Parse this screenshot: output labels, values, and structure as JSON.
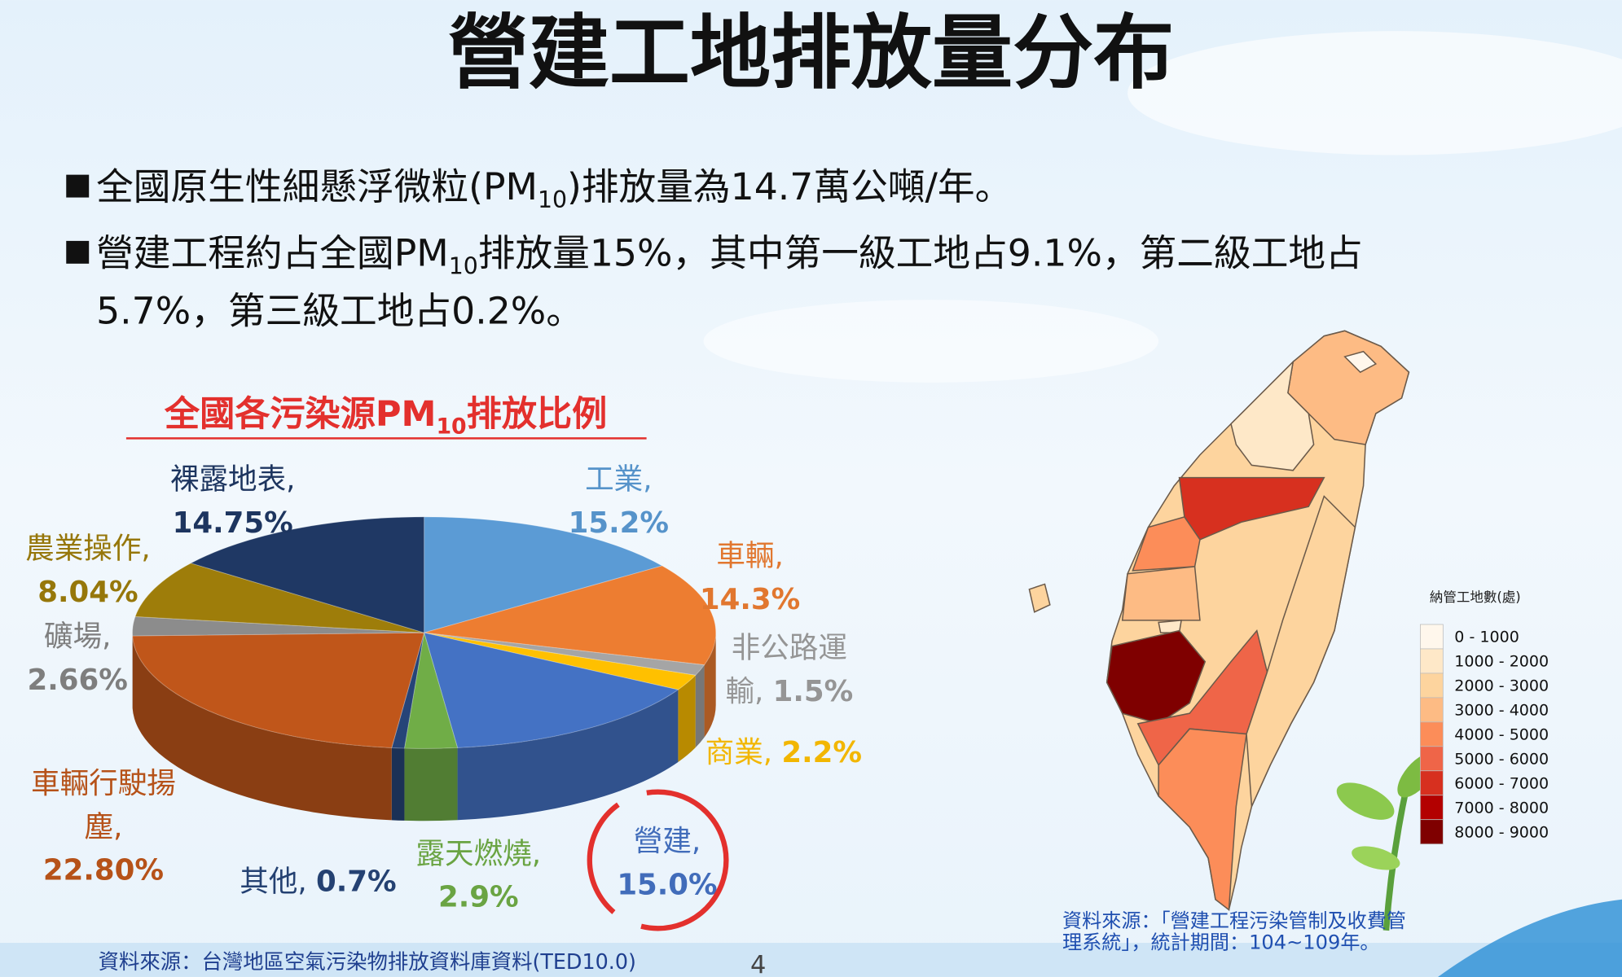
{
  "title": "營建工地排放量分布",
  "bullets": [
    {
      "lines": [
        [
          "全國原生性細懸浮微粒(PM",
          "10",
          ")排放量為14.7萬公噸/年。"
        ]
      ]
    },
    {
      "lines": [
        [
          "營建工程約占全國PM",
          "10",
          "排放量15%，其中第一級工地占9.1%，第二級工地占"
        ],
        [
          "5.7%，第三級工地占0.2%。"
        ]
      ]
    }
  ],
  "chart_data": {
    "type": "pie",
    "title": [
      "全國各污染源PM",
      "10",
      "排放比例"
    ],
    "categories": [
      "工業,",
      "車輛,",
      "非公路運輸,",
      "商業,",
      "營建,",
      "露天燃燒,",
      "其他,",
      "車輛行駛揚塵,",
      "礦場,",
      "農業操作,",
      "裸露地表,"
    ],
    "values": [
      15.2,
      14.3,
      1.5,
      2.2,
      15.0,
      2.9,
      0.7,
      22.8,
      2.66,
      8.04,
      14.75
    ],
    "value_labels": [
      "15.2%",
      "14.3%",
      "1.5%",
      "2.2%",
      "15.0%",
      "2.9%",
      "0.7%",
      "22.80%",
      "2.66%",
      "8.04%",
      "14.75%"
    ],
    "colors": [
      "#5b9bd5",
      "#ed7d31",
      "#a5a5a5",
      "#ffc000",
      "#4472c4",
      "#70ad47",
      "#264478",
      "#c0561a",
      "#8c8c8c",
      "#9e7d0a",
      "#1f3864"
    ]
  },
  "map": {
    "legend_title": "納管工地數(處)",
    "legend": [
      {
        "label": "0 - 1000",
        "color": "#fff7ec"
      },
      {
        "label": "1000 - 2000",
        "color": "#fee8c8"
      },
      {
        "label": "2000 - 3000",
        "color": "#fdd49e"
      },
      {
        "label": "3000 - 4000",
        "color": "#fdbb84"
      },
      {
        "label": "4000 - 5000",
        "color": "#fc8d59"
      },
      {
        "label": "5000 - 6000",
        "color": "#ef6548"
      },
      {
        "label": "6000 - 7000",
        "color": "#d7301f"
      },
      {
        "label": "7000 - 8000",
        "color": "#b30000"
      },
      {
        "label": "8000 - 9000",
        "color": "#7f0000"
      }
    ]
  },
  "sources": {
    "left": "資料來源：台灣地區空氣污染物排放資料庫資料(TED10.0)",
    "right": [
      "資料來源：「營建工程污染管制及收費管",
      "理系統」，統計期間：104~109年。"
    ]
  },
  "page_number": "4"
}
